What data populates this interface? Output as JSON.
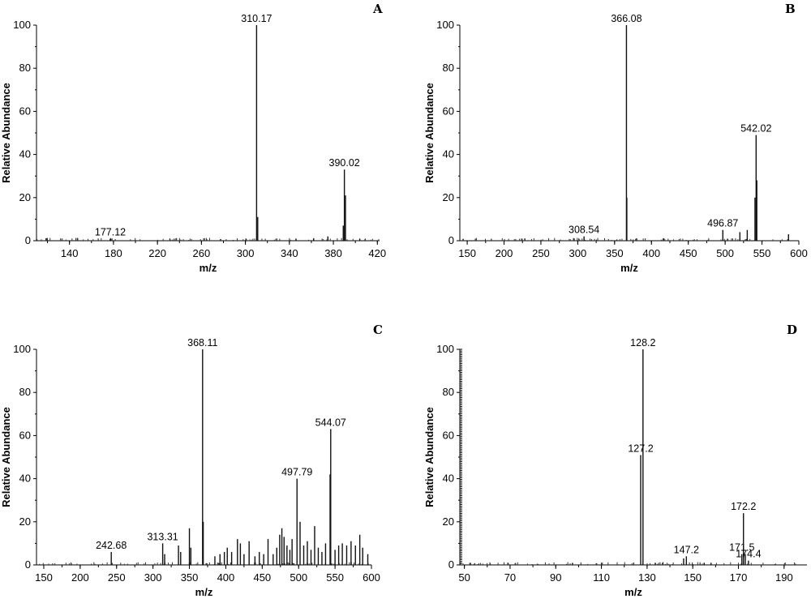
{
  "chart_data": [
    {
      "panel": "A",
      "type": "bar",
      "xlabel": "m/z",
      "ylabel": "Relative Abundance",
      "xlim": [
        110,
        422
      ],
      "ylim": [
        0,
        100
      ],
      "xticks": [
        140,
        180,
        220,
        260,
        300,
        340,
        380,
        420
      ],
      "yticks": [
        0,
        20,
        40,
        60,
        80,
        100
      ],
      "peaks": [
        {
          "x": 177.12,
          "y": 1,
          "label": "177.12"
        },
        {
          "x": 310.17,
          "y": 100,
          "label": "310.17"
        },
        {
          "x": 311.2,
          "y": 11
        },
        {
          "x": 375,
          "y": 2
        },
        {
          "x": 389.0,
          "y": 7
        },
        {
          "x": 390.02,
          "y": 33,
          "label": "390.02"
        },
        {
          "x": 391.0,
          "y": 21
        },
        {
          "x": 362,
          "y": 1
        },
        {
          "x": 346,
          "y": 1
        },
        {
          "x": 404,
          "y": 1
        }
      ]
    },
    {
      "panel": "B",
      "type": "bar",
      "xlabel": "m/z",
      "ylabel": "Relative Abundance",
      "xlim": [
        140,
        600
      ],
      "ylim": [
        0,
        100
      ],
      "xticks": [
        150,
        200,
        250,
        300,
        350,
        400,
        450,
        500,
        550,
        600
      ],
      "yticks": [
        0,
        20,
        40,
        60,
        80,
        100
      ],
      "peaks": [
        {
          "x": 308.54,
          "y": 2,
          "label": "308.54"
        },
        {
          "x": 366.08,
          "y": 100,
          "label": "366.08"
        },
        {
          "x": 366.6,
          "y": 20
        },
        {
          "x": 496.87,
          "y": 5,
          "label": "496.87"
        },
        {
          "x": 520,
          "y": 4
        },
        {
          "x": 530,
          "y": 5
        },
        {
          "x": 540.5,
          "y": 20
        },
        {
          "x": 542.02,
          "y": 49,
          "label": "542.02"
        },
        {
          "x": 543.0,
          "y": 28
        },
        {
          "x": 586,
          "y": 3
        }
      ]
    },
    {
      "panel": "C",
      "type": "bar",
      "xlabel": "m/z",
      "ylabel": "Relative Abundance",
      "xlim": [
        140,
        600
      ],
      "ylim": [
        0,
        100
      ],
      "xticks": [
        150,
        200,
        250,
        300,
        350,
        400,
        450,
        500,
        550,
        600
      ],
      "yticks": [
        0,
        20,
        40,
        60,
        80,
        100
      ],
      "peaks": [
        {
          "x": 242.68,
          "y": 6,
          "label": "242.68"
        },
        {
          "x": 313.31,
          "y": 10,
          "label": "313.31"
        },
        {
          "x": 316,
          "y": 5
        },
        {
          "x": 335,
          "y": 9
        },
        {
          "x": 338,
          "y": 6
        },
        {
          "x": 350,
          "y": 17
        },
        {
          "x": 352,
          "y": 8
        },
        {
          "x": 368.11,
          "y": 100,
          "label": "368.11"
        },
        {
          "x": 369,
          "y": 20
        },
        {
          "x": 385,
          "y": 4
        },
        {
          "x": 392,
          "y": 5
        },
        {
          "x": 398,
          "y": 6
        },
        {
          "x": 402,
          "y": 8
        },
        {
          "x": 408,
          "y": 6
        },
        {
          "x": 416,
          "y": 12
        },
        {
          "x": 420,
          "y": 10
        },
        {
          "x": 425,
          "y": 5
        },
        {
          "x": 432,
          "y": 11
        },
        {
          "x": 440,
          "y": 4
        },
        {
          "x": 446,
          "y": 6
        },
        {
          "x": 452,
          "y": 5
        },
        {
          "x": 458,
          "y": 12
        },
        {
          "x": 465,
          "y": 5
        },
        {
          "x": 470,
          "y": 8
        },
        {
          "x": 474,
          "y": 14
        },
        {
          "x": 477,
          "y": 17
        },
        {
          "x": 480,
          "y": 13
        },
        {
          "x": 484,
          "y": 9
        },
        {
          "x": 488,
          "y": 7
        },
        {
          "x": 491,
          "y": 12
        },
        {
          "x": 497.79,
          "y": 40,
          "label": "497.79"
        },
        {
          "x": 502,
          "y": 20
        },
        {
          "x": 507,
          "y": 9
        },
        {
          "x": 512,
          "y": 11
        },
        {
          "x": 517,
          "y": 7
        },
        {
          "x": 522,
          "y": 18
        },
        {
          "x": 527,
          "y": 8
        },
        {
          "x": 532,
          "y": 6
        },
        {
          "x": 537,
          "y": 10
        },
        {
          "x": 543.2,
          "y": 42
        },
        {
          "x": 544.07,
          "y": 63,
          "label": "544.07"
        },
        {
          "x": 550,
          "y": 7
        },
        {
          "x": 555,
          "y": 9
        },
        {
          "x": 560,
          "y": 10
        },
        {
          "x": 566,
          "y": 9
        },
        {
          "x": 572,
          "y": 11
        },
        {
          "x": 578,
          "y": 9
        },
        {
          "x": 584,
          "y": 14
        },
        {
          "x": 588,
          "y": 8
        },
        {
          "x": 595,
          "y": 5
        }
      ]
    },
    {
      "panel": "D",
      "type": "bar",
      "xlabel": "m/z",
      "ylabel": "Relative Abundance",
      "xlim": [
        48,
        200
      ],
      "ylim": [
        0,
        100
      ],
      "xticks": [
        50,
        70,
        90,
        110,
        130,
        150,
        170,
        190
      ],
      "yticks": [
        0,
        20,
        40,
        60,
        80,
        100
      ],
      "peaks": [
        {
          "x": 127.2,
          "y": 51,
          "label": "127.2"
        },
        {
          "x": 128.2,
          "y": 100,
          "label": "128.2"
        },
        {
          "x": 146.0,
          "y": 3
        },
        {
          "x": 147.2,
          "y": 4,
          "label": "147.2"
        },
        {
          "x": 155,
          "y": 1
        },
        {
          "x": 158,
          "y": 1
        },
        {
          "x": 171.5,
          "y": 5,
          "label": "171.5"
        },
        {
          "x": 172.2,
          "y": 24,
          "label": "172.2"
        },
        {
          "x": 173.0,
          "y": 5
        },
        {
          "x": 174.4,
          "y": 2,
          "label": "174.4"
        }
      ]
    }
  ]
}
